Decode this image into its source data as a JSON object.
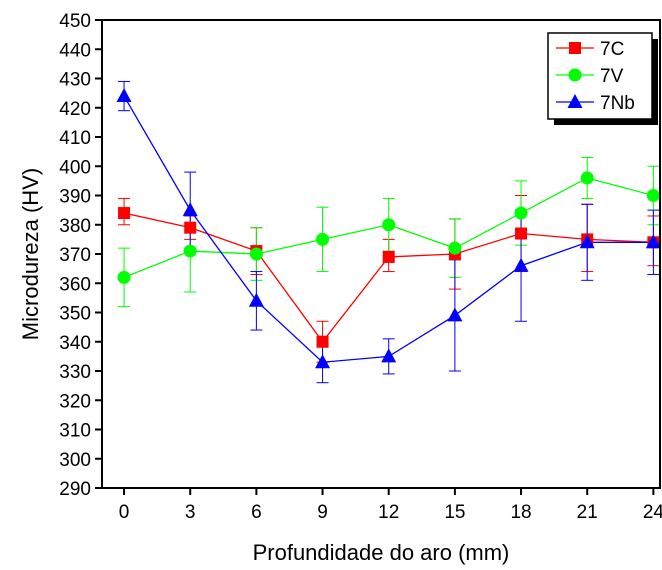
{
  "chart_data": {
    "type": "line",
    "title": "",
    "xlabel": "Profundidade do aro (mm)",
    "ylabel": "Microdureza (HV)",
    "xlim": [
      -1,
      24.3
    ],
    "ylim": [
      290,
      450
    ],
    "xticks": [
      0,
      3,
      6,
      9,
      12,
      15,
      18,
      21,
      24
    ],
    "yticks": [
      290,
      300,
      310,
      320,
      330,
      340,
      350,
      360,
      370,
      380,
      390,
      400,
      410,
      420,
      430,
      440,
      450
    ],
    "grid": false,
    "legend_position": "top-right",
    "x": [
      0,
      3,
      6,
      9,
      12,
      15,
      18,
      21,
      24
    ],
    "series": [
      {
        "name": "7C",
        "color": "#ff0000",
        "marker": "square",
        "values": [
          384,
          379,
          371,
          340,
          369,
          370,
          377,
          375,
          374
        ],
        "err_low": [
          380,
          375,
          363,
          333,
          364,
          358,
          364,
          364,
          366
        ],
        "err_high": [
          389,
          383,
          379,
          347,
          375,
          382,
          390,
          387,
          383
        ]
      },
      {
        "name": "7V",
        "color": "#00ff00",
        "marker": "circle",
        "values": [
          362,
          371,
          370,
          375,
          380,
          372,
          384,
          396,
          390
        ],
        "err_low": [
          352,
          357,
          361,
          364,
          371,
          362,
          373,
          389,
          380
        ],
        "err_high": [
          372,
          384,
          379,
          386,
          389,
          382,
          395,
          403,
          400
        ]
      },
      {
        "name": "7Nb",
        "color": "#0000ff",
        "marker": "triangle",
        "values": [
          424,
          385,
          354,
          333,
          335,
          349,
          366,
          374,
          374
        ],
        "err_low": [
          419,
          372,
          344,
          326,
          329,
          330,
          347,
          361,
          363
        ],
        "err_high": [
          429,
          398,
          364,
          339,
          341,
          368,
          385,
          387,
          385
        ]
      }
    ]
  }
}
